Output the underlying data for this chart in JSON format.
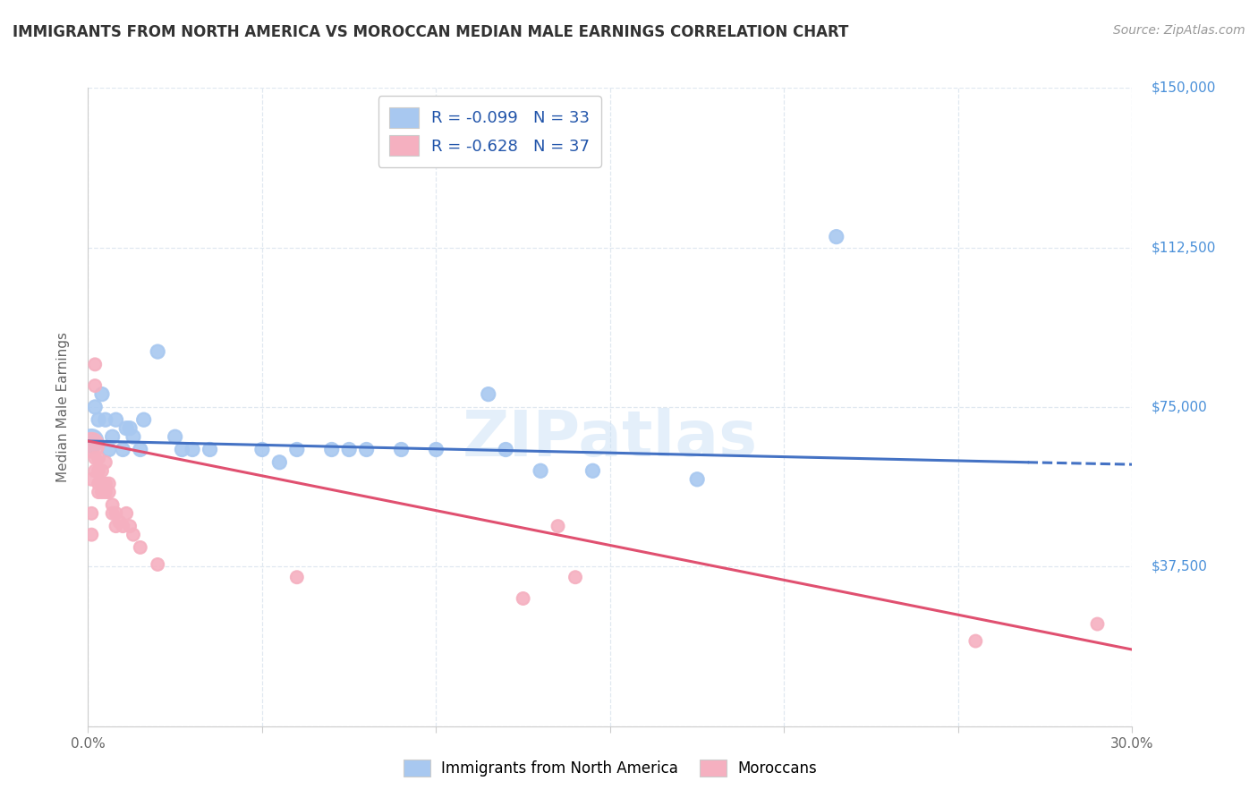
{
  "title": "IMMIGRANTS FROM NORTH AMERICA VS MOROCCAN MEDIAN MALE EARNINGS CORRELATION CHART",
  "source": "Source: ZipAtlas.com",
  "ylabel": "Median Male Earnings",
  "xlim": [
    0,
    0.3
  ],
  "ylim": [
    0,
    150000
  ],
  "yticks": [
    0,
    37500,
    75000,
    112500,
    150000
  ],
  "ytick_labels": [
    "",
    "$37,500",
    "$75,000",
    "$112,500",
    "$150,000"
  ],
  "xticks": [
    0.0,
    0.05,
    0.1,
    0.15,
    0.2,
    0.25,
    0.3
  ],
  "xtick_labels": [
    "0.0%",
    "",
    "",
    "",
    "",
    "",
    "30.0%"
  ],
  "legend_blue_label": "R = -0.099   N = 33",
  "legend_pink_label": "R = -0.628   N = 37",
  "blue_color": "#a8c8f0",
  "pink_color": "#f5b0c0",
  "blue_line_color": "#4472c4",
  "pink_line_color": "#e05070",
  "blue_scatter": [
    [
      0.001,
      67000
    ],
    [
      0.002,
      75000
    ],
    [
      0.003,
      72000
    ],
    [
      0.004,
      78000
    ],
    [
      0.005,
      72000
    ],
    [
      0.006,
      65000
    ],
    [
      0.007,
      68000
    ],
    [
      0.008,
      72000
    ],
    [
      0.01,
      65000
    ],
    [
      0.011,
      70000
    ],
    [
      0.012,
      70000
    ],
    [
      0.013,
      68000
    ],
    [
      0.015,
      65000
    ],
    [
      0.016,
      72000
    ],
    [
      0.02,
      88000
    ],
    [
      0.025,
      68000
    ],
    [
      0.027,
      65000
    ],
    [
      0.03,
      65000
    ],
    [
      0.035,
      65000
    ],
    [
      0.05,
      65000
    ],
    [
      0.055,
      62000
    ],
    [
      0.06,
      65000
    ],
    [
      0.07,
      65000
    ],
    [
      0.075,
      65000
    ],
    [
      0.08,
      65000
    ],
    [
      0.09,
      65000
    ],
    [
      0.1,
      65000
    ],
    [
      0.115,
      78000
    ],
    [
      0.12,
      65000
    ],
    [
      0.13,
      60000
    ],
    [
      0.145,
      60000
    ],
    [
      0.175,
      58000
    ],
    [
      0.215,
      115000
    ]
  ],
  "pink_scatter": [
    [
      0.001,
      66000
    ],
    [
      0.001,
      58000
    ],
    [
      0.002,
      63000
    ],
    [
      0.002,
      60000
    ],
    [
      0.002,
      85000
    ],
    [
      0.002,
      80000
    ],
    [
      0.003,
      63000
    ],
    [
      0.003,
      60000
    ],
    [
      0.003,
      57000
    ],
    [
      0.003,
      55000
    ],
    [
      0.004,
      60000
    ],
    [
      0.004,
      57000
    ],
    [
      0.004,
      55000
    ],
    [
      0.005,
      57000
    ],
    [
      0.005,
      55000
    ],
    [
      0.005,
      62000
    ],
    [
      0.006,
      57000
    ],
    [
      0.006,
      55000
    ],
    [
      0.007,
      52000
    ],
    [
      0.007,
      50000
    ],
    [
      0.008,
      50000
    ],
    [
      0.008,
      47000
    ],
    [
      0.009,
      48000
    ],
    [
      0.01,
      47000
    ],
    [
      0.011,
      50000
    ],
    [
      0.012,
      47000
    ],
    [
      0.013,
      45000
    ],
    [
      0.015,
      42000
    ],
    [
      0.02,
      38000
    ],
    [
      0.06,
      35000
    ],
    [
      0.125,
      30000
    ],
    [
      0.135,
      47000
    ],
    [
      0.14,
      35000
    ],
    [
      0.255,
      20000
    ],
    [
      0.29,
      24000
    ],
    [
      0.001,
      50000
    ],
    [
      0.001,
      45000
    ]
  ],
  "blue_line": [
    [
      0.0,
      67000
    ],
    [
      0.27,
      62000
    ]
  ],
  "blue_line_dash": [
    [
      0.27,
      62000
    ],
    [
      0.3,
      61500
    ]
  ],
  "pink_line": [
    [
      0.0,
      67000
    ],
    [
      0.3,
      18000
    ]
  ],
  "watermark_text": "ZIPatlas",
  "background_color": "#ffffff",
  "grid_color": "#e0e8f0",
  "title_color": "#333333",
  "ylabel_color": "#666666",
  "ytick_color": "#4a90d9",
  "xtick_color": "#666666",
  "source_color": "#999999"
}
